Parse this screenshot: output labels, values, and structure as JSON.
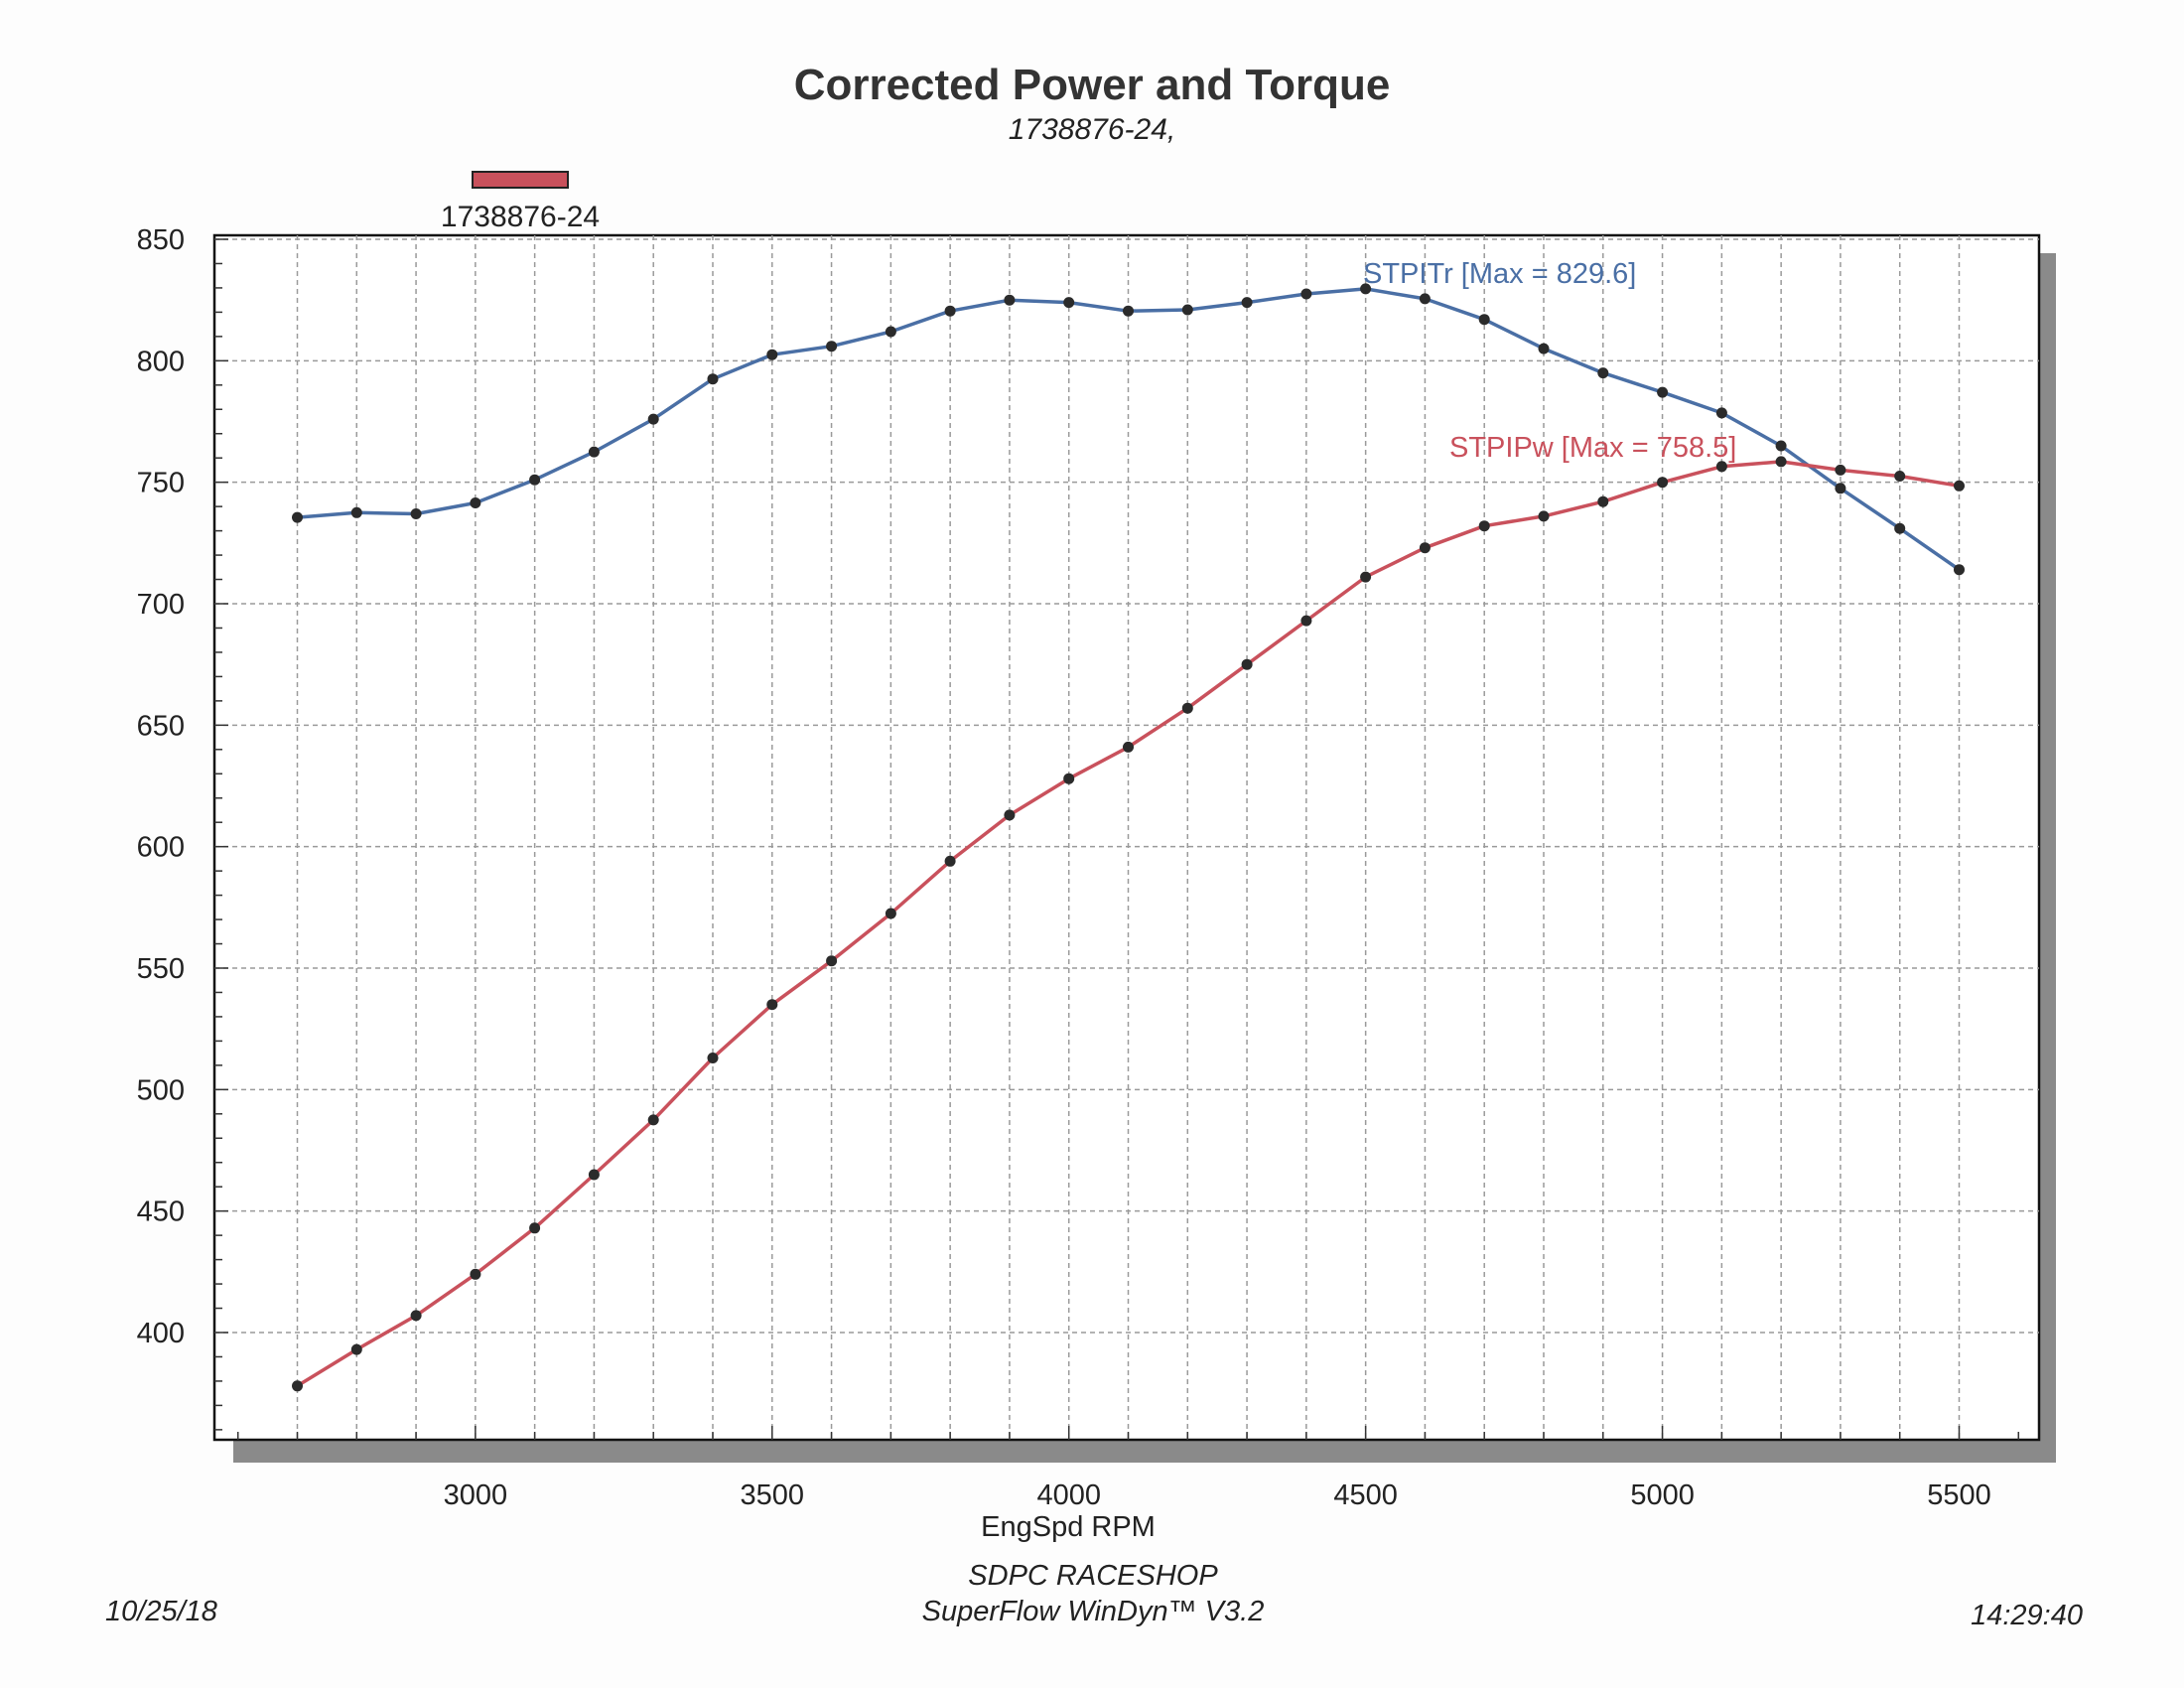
{
  "chart_data": {
    "type": "line",
    "title": "Corrected Power and Torque",
    "subtitle": "1738876-24,",
    "legend": {
      "label": "1738876-24",
      "color": "#c9515c",
      "placement": "top-left"
    },
    "xlabel": "EngSpd RPM",
    "ylabel": "",
    "xlim": [
      2600,
      5600
    ],
    "ylim": [
      350,
      850
    ],
    "x_ticks": [
      "3000",
      "3500",
      "4000",
      "4500",
      "5000",
      "5500"
    ],
    "y_ticks": [
      "400",
      "450",
      "500",
      "550",
      "600",
      "650",
      "700",
      "750",
      "800",
      "850"
    ],
    "grid": true,
    "x": [
      2700,
      2800,
      2900,
      3000,
      3100,
      3200,
      3300,
      3400,
      3500,
      3600,
      3700,
      3800,
      3900,
      4000,
      4100,
      4200,
      4300,
      4400,
      4500,
      4600,
      4700,
      4800,
      4900,
      5000,
      5100,
      5200,
      5300,
      5400,
      5500
    ],
    "series": [
      {
        "name": "STPITr",
        "color": "#4a6fa5",
        "annotation": "STPITr [Max = 829.6]",
        "values": [
          735.5,
          737.5,
          737,
          741.5,
          751,
          762.5,
          776,
          792.5,
          802.5,
          806,
          812,
          820.5,
          825,
          824,
          820.5,
          821,
          824,
          827.5,
          829.6,
          825.5,
          817,
          805,
          795,
          787,
          778.5,
          765,
          747.5,
          731,
          714
        ]
      },
      {
        "name": "STPIPw",
        "color": "#c9515c",
        "annotation": "STPIPw [Max = 758.5]",
        "values": [
          378,
          393,
          407,
          424,
          443,
          465,
          487.5,
          513,
          535,
          553,
          572.5,
          594,
          613,
          628,
          641,
          657,
          675,
          693,
          711,
          723,
          732,
          736,
          742,
          750,
          756.5,
          758.5,
          755,
          752.5,
          748.5
        ]
      }
    ]
  },
  "footer": {
    "date": "10/25/18",
    "shop": "SDPC RACESHOP",
    "software": "SuperFlow WinDyn™ V3.2",
    "time": "14:29:40"
  }
}
